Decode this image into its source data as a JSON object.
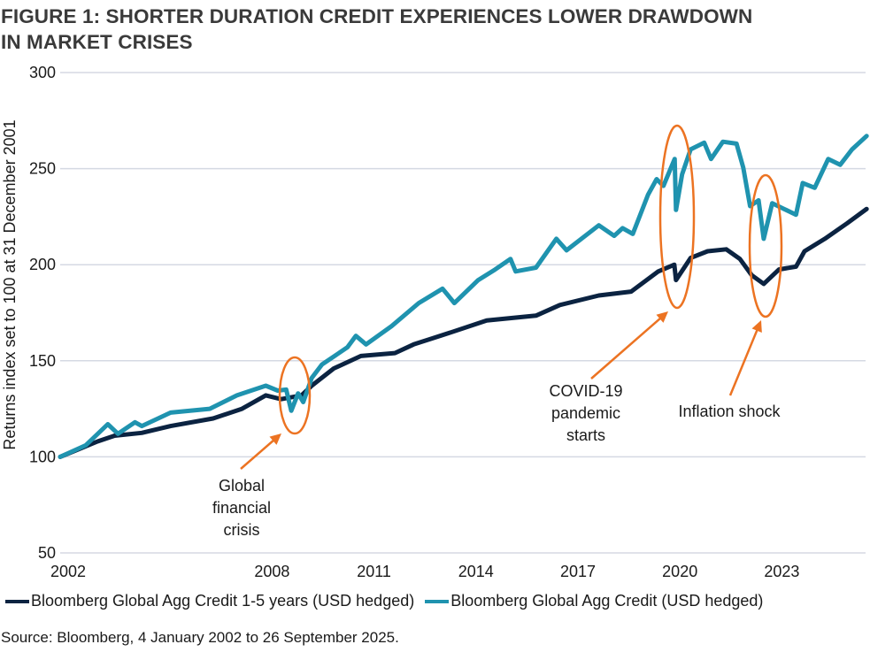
{
  "title": "FIGURE 1: SHORTER DURATION CREDIT EXPERIENCES LOWER DRAWDOWN IN MARKET CRISES",
  "title_lines": [
    "FIGURE 1: SHORTER DURATION CREDIT EXPERIENCES LOWER DRAWDOWN",
    "IN MARKET CRISES"
  ],
  "source": "Source: Bloomberg, 4 January 2002 to 26 September 2025.",
  "chart_data": {
    "type": "line",
    "title": "FIGURE 1: SHORTER DURATION CREDIT EXPERIENCES LOWER DRAWDOWN IN MARKET CRISES",
    "xlabel": "",
    "ylabel": "Returns index set to 100 at 31 December 2001",
    "xlim": [
      2002,
      2025.74
    ],
    "ylim": [
      50,
      300
    ],
    "yticks": [
      50,
      100,
      150,
      200,
      250,
      300
    ],
    "xticks": [
      2002,
      2008,
      2011,
      2014,
      2017,
      2020,
      2023
    ],
    "grid": "horizontal",
    "legend": "bottom",
    "series": [
      {
        "name": "Bloomberg Global Agg Credit 1-5 years (USD hedged)",
        "color": "#0B2341",
        "x": [
          2002.0,
          2003.1,
          2003.6,
          2004.4,
          2005.25,
          2006.5,
          2007.35,
          2008.05,
          2008.5,
          2009.1,
          2009.4,
          2010.05,
          2010.85,
          2011.85,
          2012.4,
          2013.45,
          2014.55,
          2016.0,
          2016.7,
          2017.85,
          2018.8,
          2019.6,
          2020.07,
          2020.12,
          2020.55,
          2021.05,
          2021.6,
          2022.0,
          2022.35,
          2022.7,
          2023.15,
          2023.65,
          2023.9,
          2024.5,
          2025.15,
          2025.73
        ],
        "y": [
          100,
          108,
          111,
          112.5,
          116,
          120,
          125,
          132,
          130,
          132,
          137,
          146,
          152.5,
          154,
          158.5,
          164.5,
          171,
          173.5,
          179,
          184,
          186,
          196.5,
          200,
          192,
          203.5,
          207,
          208,
          203,
          194.5,
          190,
          197.5,
          199,
          207,
          213.5,
          221.5,
          229
        ]
      },
      {
        "name": "Bloomberg Global Agg Credit (USD hedged)",
        "color": "#1F93AF",
        "x": [
          2002.0,
          2002.75,
          2003.4,
          2003.7,
          2004.2,
          2004.4,
          2005.25,
          2006.4,
          2007.2,
          2008.05,
          2008.4,
          2008.65,
          2008.8,
          2009.0,
          2009.15,
          2009.4,
          2009.7,
          2010.45,
          2010.7,
          2011.0,
          2011.75,
          2012.55,
          2013.25,
          2013.6,
          2014.3,
          2014.8,
          2015.25,
          2015.4,
          2016.0,
          2016.6,
          2016.9,
          2017.85,
          2018.3,
          2018.55,
          2018.85,
          2019.3,
          2019.55,
          2019.75,
          2020.08,
          2020.12,
          2020.3,
          2020.55,
          2020.95,
          2021.15,
          2021.5,
          2021.9,
          2022.1,
          2022.3,
          2022.55,
          2022.7,
          2022.95,
          2023.3,
          2023.65,
          2023.85,
          2024.2,
          2024.6,
          2024.95,
          2025.3,
          2025.73
        ],
        "y": [
          100,
          106,
          117,
          112,
          118,
          116,
          123,
          125,
          132,
          137,
          134.5,
          135,
          124,
          133,
          128.5,
          141,
          148,
          157,
          163,
          158.5,
          168,
          180,
          187.5,
          180,
          192,
          197.5,
          203,
          196.5,
          198.5,
          213.5,
          207.5,
          220.5,
          215,
          219,
          216,
          236.5,
          244.5,
          241,
          255,
          228.5,
          247,
          260,
          263.5,
          255,
          264,
          263,
          250.5,
          230.5,
          233.5,
          213.5,
          232,
          229,
          226,
          242.5,
          240,
          255,
          252,
          260,
          267
        ]
      }
    ],
    "annotations": [
      {
        "text": [
          "Global",
          "financial",
          "crisis"
        ],
        "period": "2008-2009",
        "color": "#EC7322"
      },
      {
        "text": [
          "COVID-19",
          "pandemic",
          "starts"
        ],
        "period": "2020",
        "color": "#EC7322"
      },
      {
        "text": [
          "Inflation shock"
        ],
        "period": "2022",
        "color": "#EC7322"
      }
    ]
  }
}
